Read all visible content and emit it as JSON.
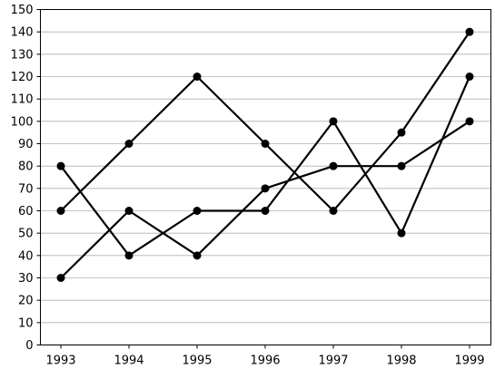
{
  "chart_data": {
    "type": "line",
    "title": "",
    "xlabel": "",
    "ylabel": "",
    "categories": [
      "1993",
      "1994",
      "1995",
      "1996",
      "1997",
      "1998",
      "1999"
    ],
    "ylim": [
      0,
      150
    ],
    "yticks": [
      0,
      10,
      20,
      30,
      40,
      50,
      60,
      70,
      80,
      90,
      100,
      110,
      120,
      130,
      140,
      150
    ],
    "grid": "horizontal",
    "line_color": "#000000",
    "grid_color": "#b0b0b0",
    "series": [
      {
        "values": [
          60,
          90,
          120,
          90,
          60,
          95,
          140
        ]
      },
      {
        "values": [
          80,
          40,
          60,
          60,
          100,
          50,
          120
        ]
      },
      {
        "values": [
          30,
          60,
          40,
          70,
          80,
          80,
          100
        ]
      }
    ]
  }
}
